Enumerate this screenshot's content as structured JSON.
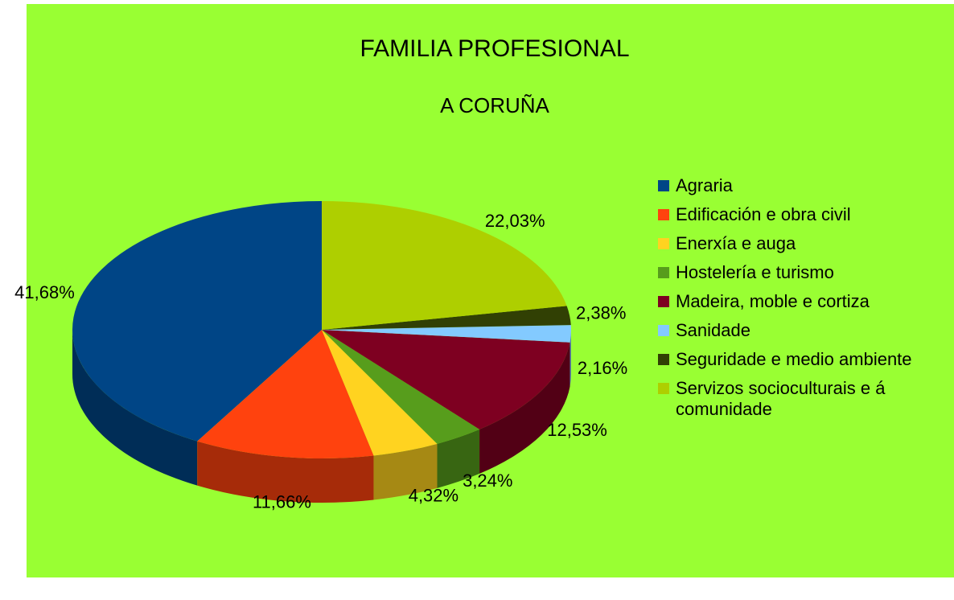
{
  "chart_data": {
    "type": "pie",
    "title": "FAMILIA PROFESIONAL",
    "subtitle": "A CORUÑA",
    "categories": [
      "Agraria",
      "Edificación e obra civil",
      "Enerxía e auga",
      "Hostelería e turismo",
      "Madeira, moble e cortiza",
      "Sanidade",
      "Seguridade e medio ambiente",
      "Servizos socioculturais e á comunidade"
    ],
    "values": [
      41.68,
      11.66,
      4.32,
      3.24,
      12.53,
      2.16,
      2.38,
      22.03
    ],
    "value_labels": [
      "41,68%",
      "11,66%",
      "4,32%",
      "3,24%",
      "12,53%",
      "2,16%",
      "2,38%",
      "22,03%"
    ],
    "colors": [
      "#004586",
      "#ff420e",
      "#ffd320",
      "#579d1c",
      "#7e0021",
      "#83caff",
      "#314004",
      "#aecf00"
    ],
    "legend": "right"
  }
}
